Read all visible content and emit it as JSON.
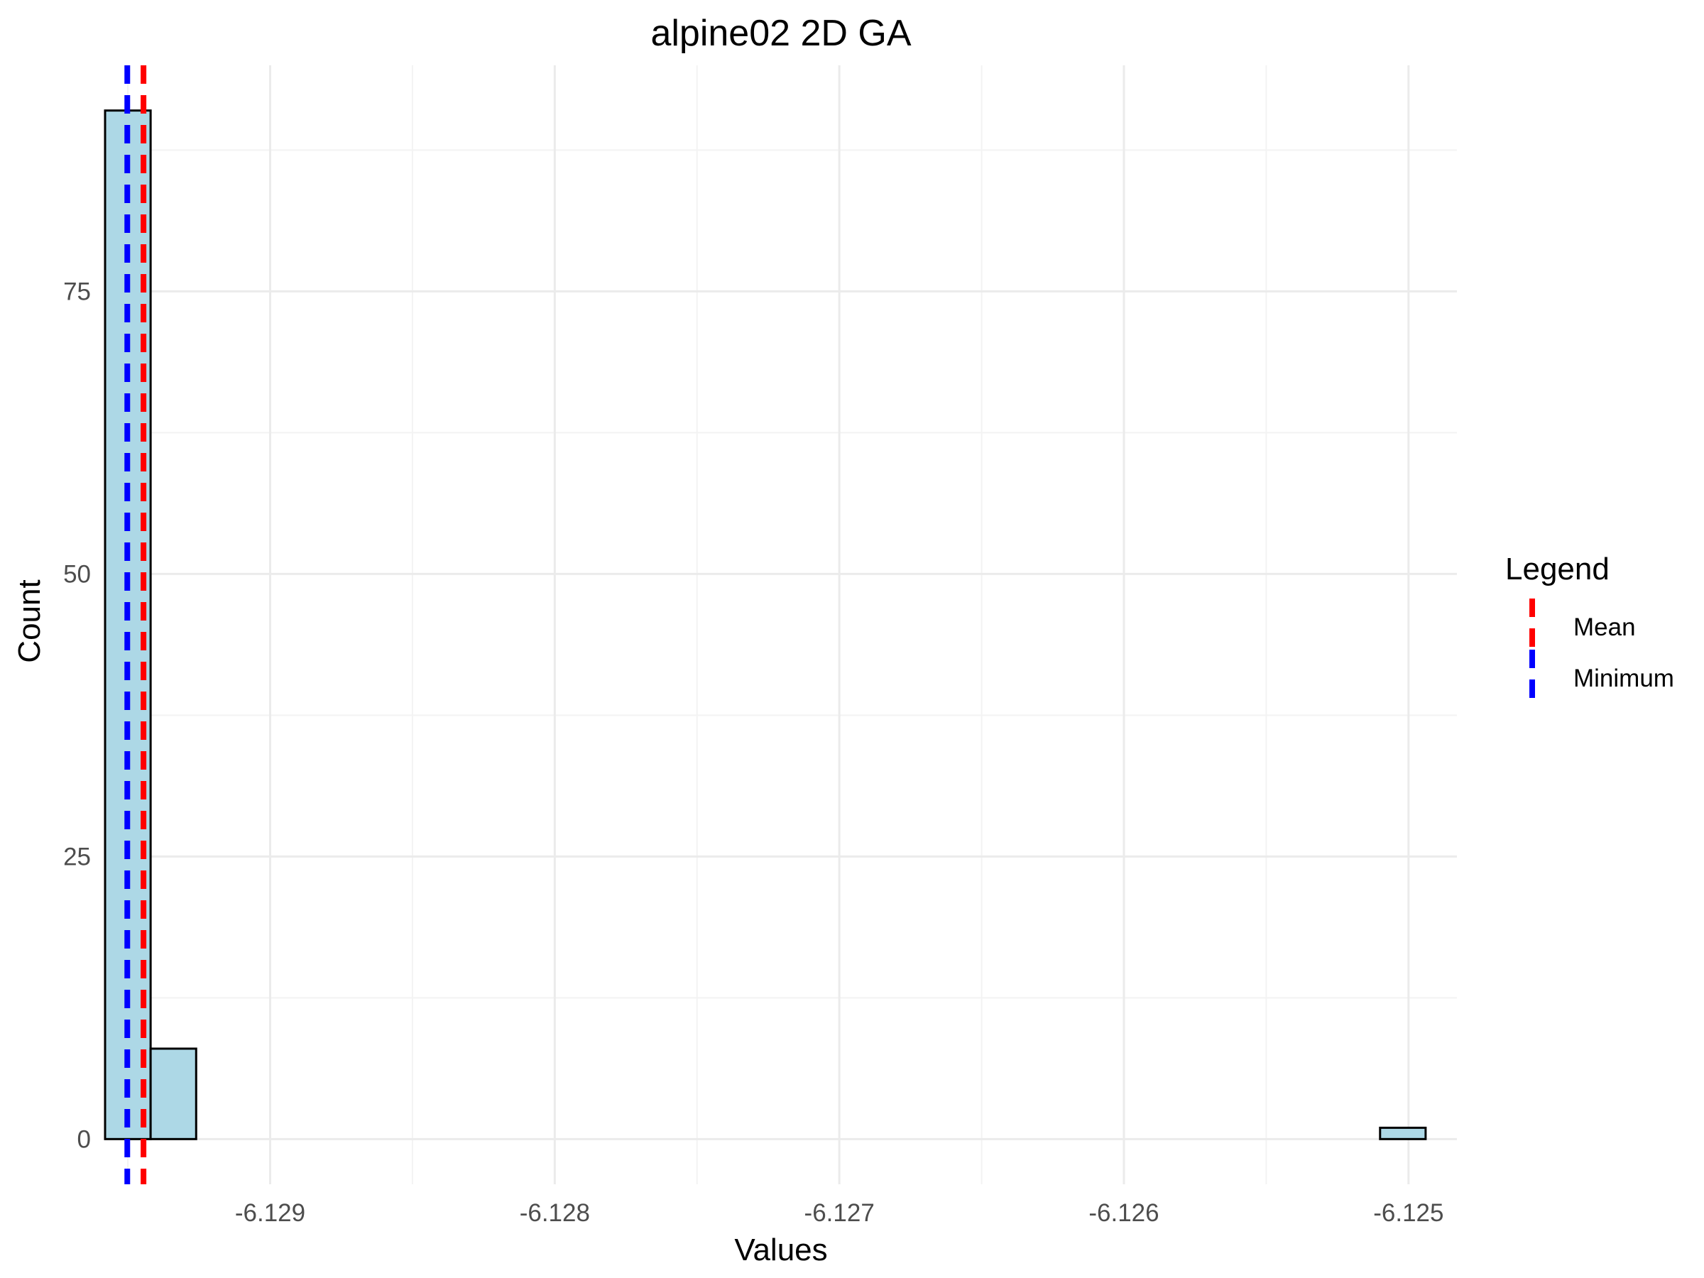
{
  "chart_data": {
    "type": "bar",
    "title": "alpine02 2D GA",
    "xlabel": "Values",
    "ylabel": "Count",
    "xlim": [
      -6.12958,
      -6.12483
    ],
    "ylim": [
      -4.0,
      95.0
    ],
    "x_ticks": [
      -6.129,
      -6.128,
      -6.127,
      -6.126,
      -6.125
    ],
    "x_tick_labels": [
      "-6.129",
      "-6.128",
      "-6.127",
      "-6.126",
      "-6.125"
    ],
    "y_ticks": [
      0,
      25,
      50,
      75
    ],
    "y_tick_labels": [
      "0",
      "25",
      "50",
      "75"
    ],
    "grid": true,
    "bins": [
      {
        "x_start": -6.12958,
        "x_end": -6.12942,
        "count": 91
      },
      {
        "x_start": -6.12942,
        "x_end": -6.12926,
        "count": 8
      },
      {
        "x_start": -6.12926,
        "x_end": -6.1291,
        "count": 0
      },
      {
        "x_start": -6.1291,
        "x_end": -6.12894,
        "count": 0
      },
      {
        "x_start": -6.12894,
        "x_end": -6.12878,
        "count": 0
      },
      {
        "x_start": -6.12878,
        "x_end": -6.12862,
        "count": 0
      },
      {
        "x_start": -6.12862,
        "x_end": -6.12846,
        "count": 0
      },
      {
        "x_start": -6.12846,
        "x_end": -6.1283,
        "count": 0
      },
      {
        "x_start": -6.1283,
        "x_end": -6.12814,
        "count": 0
      },
      {
        "x_start": -6.12814,
        "x_end": -6.12798,
        "count": 0
      },
      {
        "x_start": -6.12798,
        "x_end": -6.12782,
        "count": 0
      },
      {
        "x_start": -6.12782,
        "x_end": -6.12766,
        "count": 0
      },
      {
        "x_start": -6.12766,
        "x_end": -6.1275,
        "count": 0
      },
      {
        "x_start": -6.1275,
        "x_end": -6.12734,
        "count": 0
      },
      {
        "x_start": -6.12734,
        "x_end": -6.12718,
        "count": 0
      },
      {
        "x_start": -6.12718,
        "x_end": -6.12702,
        "count": 0
      },
      {
        "x_start": -6.12702,
        "x_end": -6.12686,
        "count": 0
      },
      {
        "x_start": -6.12686,
        "x_end": -6.1267,
        "count": 0
      },
      {
        "x_start": -6.1267,
        "x_end": -6.12654,
        "count": 0
      },
      {
        "x_start": -6.12654,
        "x_end": -6.12638,
        "count": 0
      },
      {
        "x_start": -6.12638,
        "x_end": -6.12622,
        "count": 0
      },
      {
        "x_start": -6.12622,
        "x_end": -6.12606,
        "count": 0
      },
      {
        "x_start": -6.12606,
        "x_end": -6.1259,
        "count": 0
      },
      {
        "x_start": -6.1259,
        "x_end": -6.12574,
        "count": 0
      },
      {
        "x_start": -6.12574,
        "x_end": -6.12558,
        "count": 0
      },
      {
        "x_start": -6.12558,
        "x_end": -6.12542,
        "count": 0
      },
      {
        "x_start": -6.12542,
        "x_end": -6.12526,
        "count": 0
      },
      {
        "x_start": -6.12526,
        "x_end": -6.1251,
        "count": 0
      },
      {
        "x_start": -6.1251,
        "x_end": -6.12494,
        "count": 1
      }
    ],
    "bar_fill": "#add8e6",
    "bar_outline": "#000000",
    "reference_lines": [
      {
        "name": "Mean",
        "x": -6.129445,
        "color": "#ff0000",
        "dash": "dashed"
      },
      {
        "name": "Minimum",
        "x": -6.129502,
        "color": "#0000ff",
        "dash": "dashed"
      }
    ],
    "legend": {
      "title": "Legend",
      "position": "right",
      "entries": [
        {
          "label": "Mean",
          "color": "#ff0000"
        },
        {
          "label": "Minimum",
          "color": "#0000ff"
        }
      ]
    }
  }
}
